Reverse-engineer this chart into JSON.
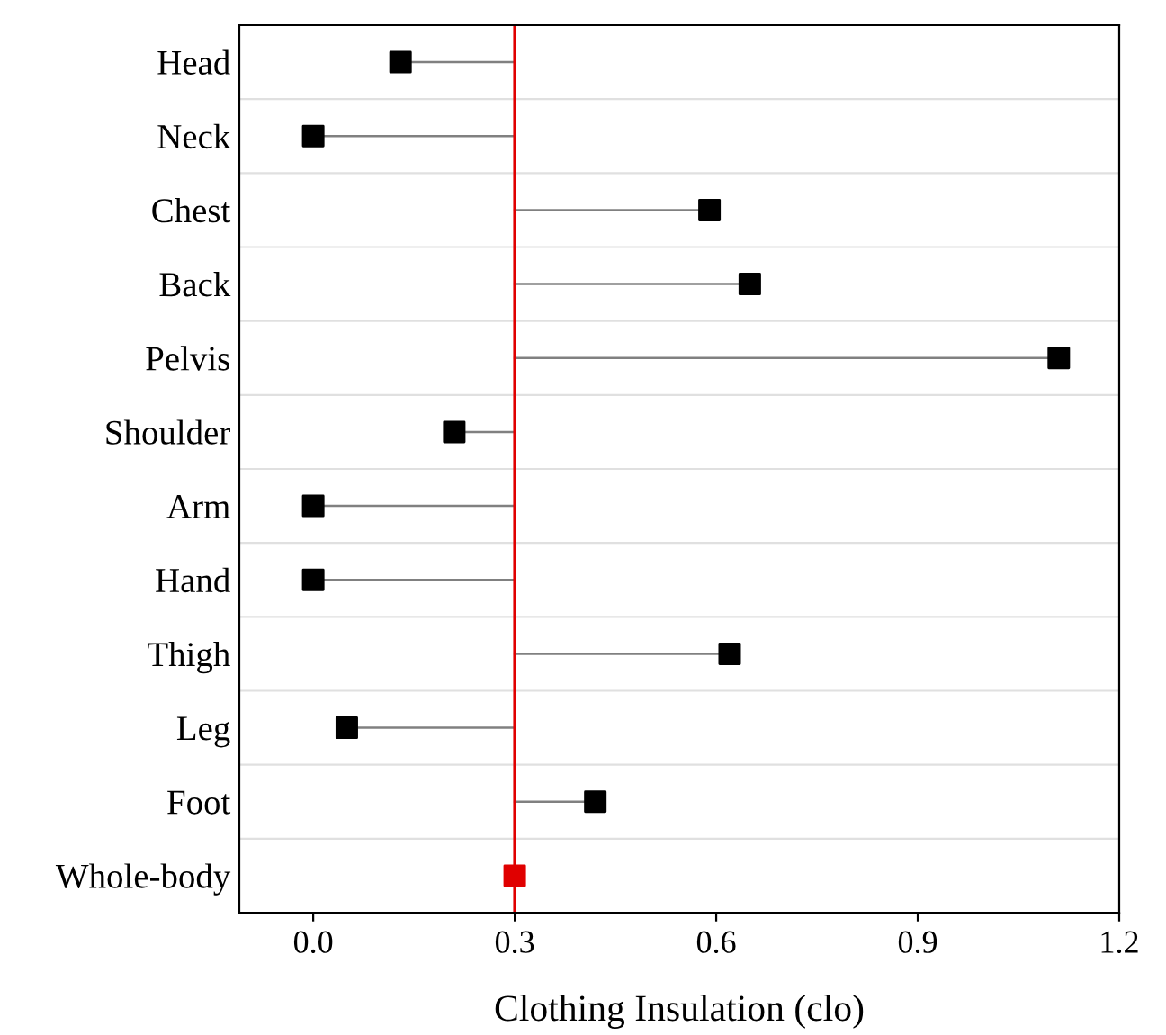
{
  "chart_data": {
    "type": "lollipop",
    "orientation": "horizontal",
    "xlabel": "Clothing Insulation (clo)",
    "categories": [
      "Head",
      "Neck",
      "Chest",
      "Back",
      "Pelvis",
      "Shoulder",
      "Arm",
      "Hand",
      "Thigh",
      "Leg",
      "Foot",
      "Whole-body"
    ],
    "values": [
      0.13,
      0.0,
      0.59,
      0.65,
      1.11,
      0.21,
      0.0,
      0.0,
      0.62,
      0.05,
      0.42,
      0.3
    ],
    "errors": [
      [
        0.13,
        0.3
      ],
      [
        0.0,
        0.3
      ],
      [
        0.3,
        0.59
      ],
      [
        0.3,
        0.65
      ],
      [
        0.3,
        1.11
      ],
      [
        0.21,
        0.3
      ],
      [
        0.0,
        0.3
      ],
      [
        0.0,
        0.3
      ],
      [
        0.3,
        0.62
      ],
      [
        0.05,
        0.3
      ],
      [
        0.3,
        0.42
      ],
      null
    ],
    "colors": [
      "#000000",
      "#000000",
      "#000000",
      "#000000",
      "#000000",
      "#000000",
      "#000000",
      "#000000",
      "#000000",
      "#000000",
      "#000000",
      "#e00000"
    ],
    "xlim": [
      -0.11,
      1.2
    ],
    "xticks": [
      {
        "value": 0.0,
        "label": "0.0"
      },
      0.3,
      0.6,
      0.9,
      1.2
    ],
    "ref_lines": [
      {
        "axis": "x",
        "value": 0.3,
        "label": null,
        "color": "#e00000"
      }
    ],
    "marker": "square",
    "grid": "y"
  }
}
